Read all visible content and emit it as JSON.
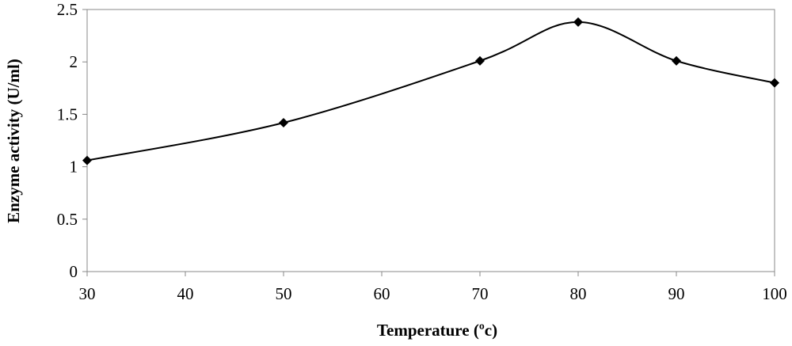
{
  "chart_data": {
    "type": "line",
    "title": "",
    "xlabel": "Temperature (ºc)",
    "ylabel": "Enzyme activity (U/ml)",
    "xlim": [
      30,
      100
    ],
    "ylim": [
      0,
      2.5
    ],
    "x_ticks": [
      "30",
      "40",
      "50",
      "60",
      "70",
      "80",
      "90",
      "100"
    ],
    "y_ticks": [
      "0",
      "0.5",
      "1",
      "1.5",
      "2",
      "2.5"
    ],
    "grid": false,
    "legend": "none",
    "smooth": true,
    "marker": "diamond",
    "line_color": "#000000",
    "series": [
      {
        "x": [
          30,
          50,
          70,
          80,
          90,
          100
        ],
        "y": [
          1.06,
          1.42,
          2.01,
          2.38,
          2.01,
          1.8
        ]
      }
    ]
  }
}
